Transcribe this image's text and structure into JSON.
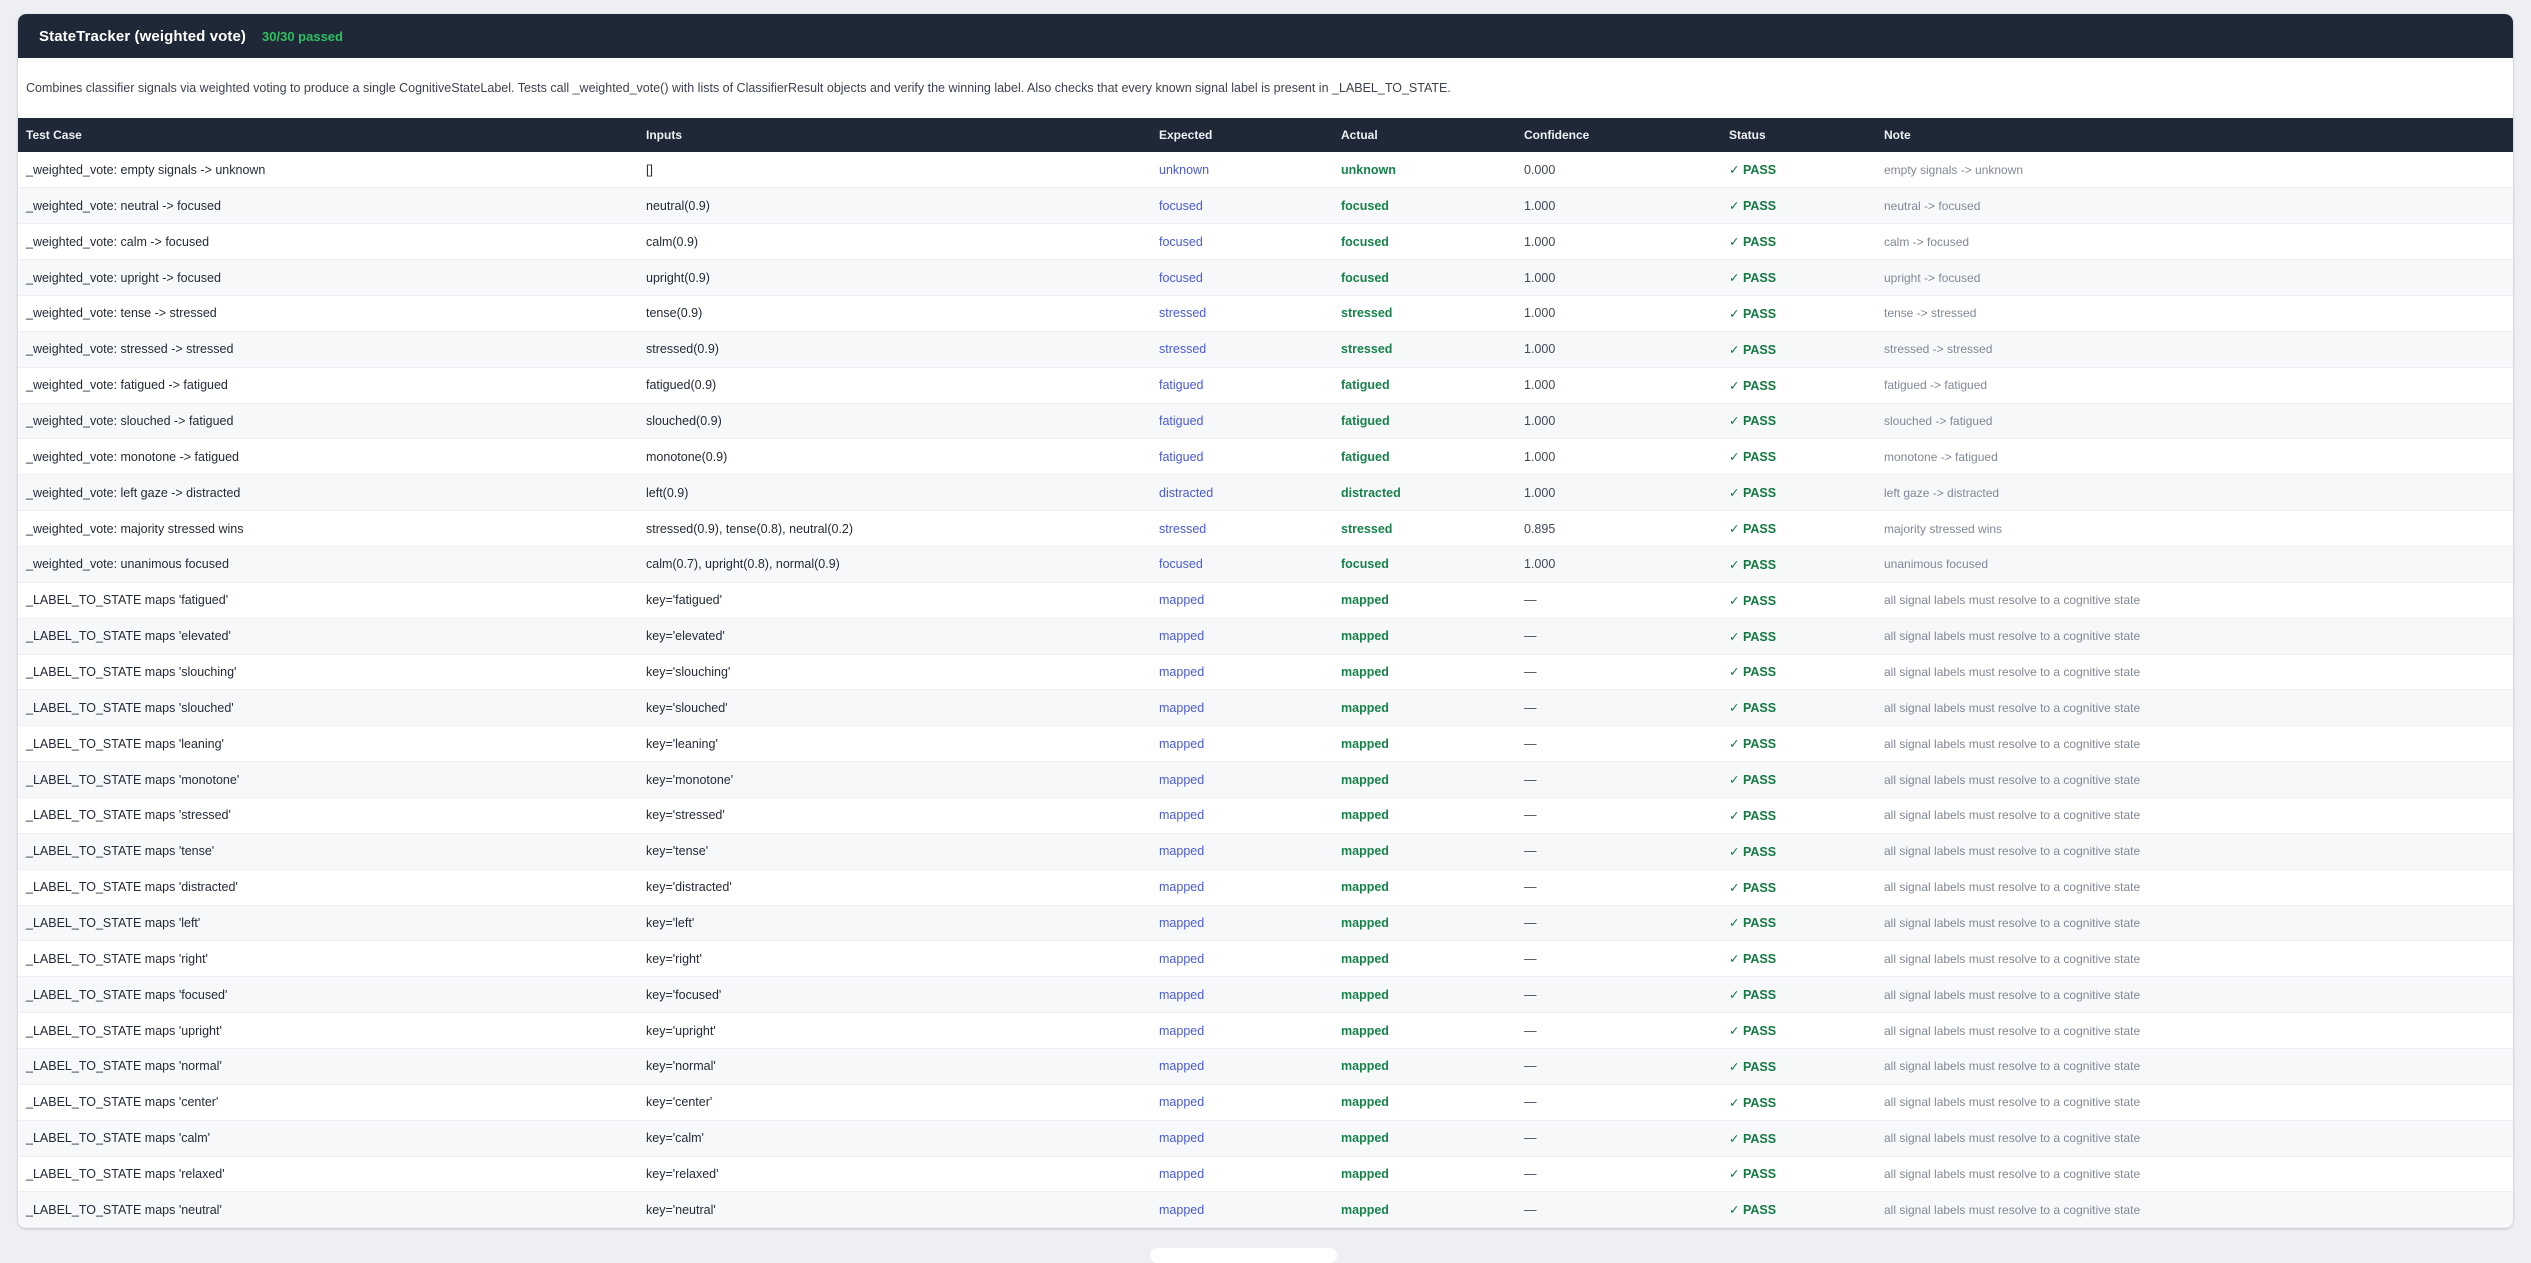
{
  "suite": {
    "title": "StateTracker (weighted vote)",
    "passed_summary": "30/30 passed",
    "description": "Combines classifier signals via weighted voting to produce a single CognitiveStateLabel. Tests call _weighted_vote() with lists of ClassifierResult objects and verify the winning label. Also checks that every known signal label is present in _LABEL_TO_STATE."
  },
  "colors": {
    "header_bg": "#1f2836",
    "passed_green": "#2fbf61",
    "expected_blue": "#4a5bd4",
    "actual_green": "#17824a",
    "pass_green": "#137a42",
    "page_bg": "#edeff3"
  },
  "table": {
    "columns": [
      "Test Case",
      "Inputs",
      "Expected",
      "Actual",
      "Confidence",
      "Status",
      "Note"
    ],
    "check_glyph": "✓",
    "rows": [
      {
        "test_case": "_weighted_vote: empty signals -> unknown",
        "inputs": "[]",
        "expected": "unknown",
        "actual": "unknown",
        "confidence": "0.000",
        "status": "PASS",
        "note": "empty signals -> unknown"
      },
      {
        "test_case": "_weighted_vote: neutral -> focused",
        "inputs": "neutral(0.9)",
        "expected": "focused",
        "actual": "focused",
        "confidence": "1.000",
        "status": "PASS",
        "note": "neutral -> focused"
      },
      {
        "test_case": "_weighted_vote: calm -> focused",
        "inputs": "calm(0.9)",
        "expected": "focused",
        "actual": "focused",
        "confidence": "1.000",
        "status": "PASS",
        "note": "calm -> focused"
      },
      {
        "test_case": "_weighted_vote: upright -> focused",
        "inputs": "upright(0.9)",
        "expected": "focused",
        "actual": "focused",
        "confidence": "1.000",
        "status": "PASS",
        "note": "upright -> focused"
      },
      {
        "test_case": "_weighted_vote: tense -> stressed",
        "inputs": "tense(0.9)",
        "expected": "stressed",
        "actual": "stressed",
        "confidence": "1.000",
        "status": "PASS",
        "note": "tense -> stressed"
      },
      {
        "test_case": "_weighted_vote: stressed -> stressed",
        "inputs": "stressed(0.9)",
        "expected": "stressed",
        "actual": "stressed",
        "confidence": "1.000",
        "status": "PASS",
        "note": "stressed -> stressed"
      },
      {
        "test_case": "_weighted_vote: fatigued -> fatigued",
        "inputs": "fatigued(0.9)",
        "expected": "fatigued",
        "actual": "fatigued",
        "confidence": "1.000",
        "status": "PASS",
        "note": "fatigued -> fatigued"
      },
      {
        "test_case": "_weighted_vote: slouched -> fatigued",
        "inputs": "slouched(0.9)",
        "expected": "fatigued",
        "actual": "fatigued",
        "confidence": "1.000",
        "status": "PASS",
        "note": "slouched -> fatigued"
      },
      {
        "test_case": "_weighted_vote: monotone -> fatigued",
        "inputs": "monotone(0.9)",
        "expected": "fatigued",
        "actual": "fatigued",
        "confidence": "1.000",
        "status": "PASS",
        "note": "monotone -> fatigued"
      },
      {
        "test_case": "_weighted_vote: left gaze -> distracted",
        "inputs": "left(0.9)",
        "expected": "distracted",
        "actual": "distracted",
        "confidence": "1.000",
        "status": "PASS",
        "note": "left gaze -> distracted"
      },
      {
        "test_case": "_weighted_vote: majority stressed wins",
        "inputs": "stressed(0.9), tense(0.8), neutral(0.2)",
        "expected": "stressed",
        "actual": "stressed",
        "confidence": "0.895",
        "status": "PASS",
        "note": "majority stressed wins"
      },
      {
        "test_case": "_weighted_vote: unanimous focused",
        "inputs": "calm(0.7), upright(0.8), normal(0.9)",
        "expected": "focused",
        "actual": "focused",
        "confidence": "1.000",
        "status": "PASS",
        "note": "unanimous focused"
      },
      {
        "test_case": "_LABEL_TO_STATE maps 'fatigued'",
        "inputs": "key='fatigued'",
        "expected": "mapped",
        "actual": "mapped",
        "confidence": "—",
        "status": "PASS",
        "note": "all signal labels must resolve to a cognitive state"
      },
      {
        "test_case": "_LABEL_TO_STATE maps 'elevated'",
        "inputs": "key='elevated'",
        "expected": "mapped",
        "actual": "mapped",
        "confidence": "—",
        "status": "PASS",
        "note": "all signal labels must resolve to a cognitive state"
      },
      {
        "test_case": "_LABEL_TO_STATE maps 'slouching'",
        "inputs": "key='slouching'",
        "expected": "mapped",
        "actual": "mapped",
        "confidence": "—",
        "status": "PASS",
        "note": "all signal labels must resolve to a cognitive state"
      },
      {
        "test_case": "_LABEL_TO_STATE maps 'slouched'",
        "inputs": "key='slouched'",
        "expected": "mapped",
        "actual": "mapped",
        "confidence": "—",
        "status": "PASS",
        "note": "all signal labels must resolve to a cognitive state"
      },
      {
        "test_case": "_LABEL_TO_STATE maps 'leaning'",
        "inputs": "key='leaning'",
        "expected": "mapped",
        "actual": "mapped",
        "confidence": "—",
        "status": "PASS",
        "note": "all signal labels must resolve to a cognitive state"
      },
      {
        "test_case": "_LABEL_TO_STATE maps 'monotone'",
        "inputs": "key='monotone'",
        "expected": "mapped",
        "actual": "mapped",
        "confidence": "—",
        "status": "PASS",
        "note": "all signal labels must resolve to a cognitive state"
      },
      {
        "test_case": "_LABEL_TO_STATE maps 'stressed'",
        "inputs": "key='stressed'",
        "expected": "mapped",
        "actual": "mapped",
        "confidence": "—",
        "status": "PASS",
        "note": "all signal labels must resolve to a cognitive state"
      },
      {
        "test_case": "_LABEL_TO_STATE maps 'tense'",
        "inputs": "key='tense'",
        "expected": "mapped",
        "actual": "mapped",
        "confidence": "—",
        "status": "PASS",
        "note": "all signal labels must resolve to a cognitive state"
      },
      {
        "test_case": "_LABEL_TO_STATE maps 'distracted'",
        "inputs": "key='distracted'",
        "expected": "mapped",
        "actual": "mapped",
        "confidence": "—",
        "status": "PASS",
        "note": "all signal labels must resolve to a cognitive state"
      },
      {
        "test_case": "_LABEL_TO_STATE maps 'left'",
        "inputs": "key='left'",
        "expected": "mapped",
        "actual": "mapped",
        "confidence": "—",
        "status": "PASS",
        "note": "all signal labels must resolve to a cognitive state"
      },
      {
        "test_case": "_LABEL_TO_STATE maps 'right'",
        "inputs": "key='right'",
        "expected": "mapped",
        "actual": "mapped",
        "confidence": "—",
        "status": "PASS",
        "note": "all signal labels must resolve to a cognitive state"
      },
      {
        "test_case": "_LABEL_TO_STATE maps 'focused'",
        "inputs": "key='focused'",
        "expected": "mapped",
        "actual": "mapped",
        "confidence": "—",
        "status": "PASS",
        "note": "all signal labels must resolve to a cognitive state"
      },
      {
        "test_case": "_LABEL_TO_STATE maps 'upright'",
        "inputs": "key='upright'",
        "expected": "mapped",
        "actual": "mapped",
        "confidence": "—",
        "status": "PASS",
        "note": "all signal labels must resolve to a cognitive state"
      },
      {
        "test_case": "_LABEL_TO_STATE maps 'normal'",
        "inputs": "key='normal'",
        "expected": "mapped",
        "actual": "mapped",
        "confidence": "—",
        "status": "PASS",
        "note": "all signal labels must resolve to a cognitive state"
      },
      {
        "test_case": "_LABEL_TO_STATE maps 'center'",
        "inputs": "key='center'",
        "expected": "mapped",
        "actual": "mapped",
        "confidence": "—",
        "status": "PASS",
        "note": "all signal labels must resolve to a cognitive state"
      },
      {
        "test_case": "_LABEL_TO_STATE maps 'calm'",
        "inputs": "key='calm'",
        "expected": "mapped",
        "actual": "mapped",
        "confidence": "—",
        "status": "PASS",
        "note": "all signal labels must resolve to a cognitive state"
      },
      {
        "test_case": "_LABEL_TO_STATE maps 'relaxed'",
        "inputs": "key='relaxed'",
        "expected": "mapped",
        "actual": "mapped",
        "confidence": "—",
        "status": "PASS",
        "note": "all signal labels must resolve to a cognitive state"
      },
      {
        "test_case": "_LABEL_TO_STATE maps 'neutral'",
        "inputs": "key='neutral'",
        "expected": "mapped",
        "actual": "mapped",
        "confidence": "—",
        "status": "PASS",
        "note": "all signal labels must resolve to a cognitive state"
      }
    ]
  }
}
